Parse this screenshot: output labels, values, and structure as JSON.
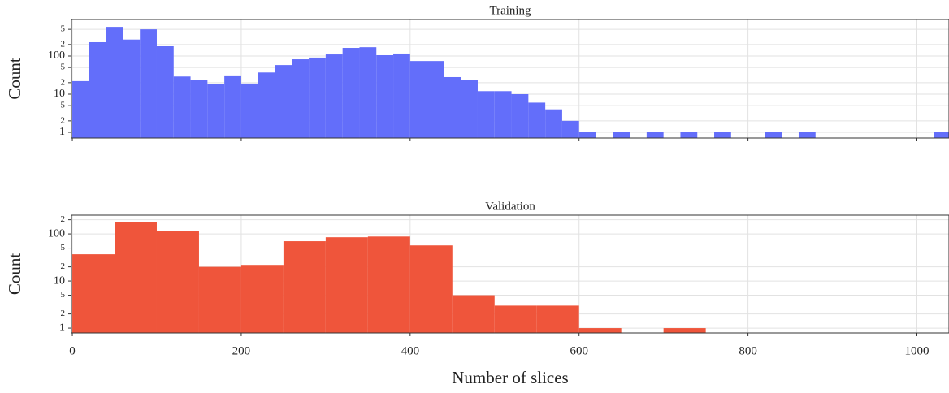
{
  "chart_data": [
    {
      "type": "histogram",
      "title": "Training",
      "ylabel": "Count",
      "color": "#636efa",
      "log_y": true,
      "grid": true,
      "bins": [
        0,
        20,
        40,
        60,
        80,
        100,
        120,
        140,
        160,
        180,
        200,
        220,
        240,
        260,
        280,
        300,
        320,
        340,
        360,
        380,
        400,
        420,
        440,
        460,
        480,
        500,
        520,
        540,
        560,
        580,
        600,
        620,
        640,
        660,
        680,
        700,
        720,
        740,
        760,
        780,
        800,
        820,
        840,
        860,
        880,
        900,
        920,
        940,
        960,
        980,
        1000,
        1020,
        1040
      ],
      "values": [
        22,
        230,
        580,
        270,
        500,
        180,
        29,
        23,
        18,
        31,
        19,
        37,
        58,
        82,
        91,
        110,
        163,
        170,
        105,
        116,
        74,
        74,
        28,
        23,
        12,
        12,
        10,
        6,
        4,
        2,
        1,
        0,
        1,
        0,
        1,
        0,
        1,
        0,
        1,
        0,
        0,
        1,
        0,
        1,
        0,
        0,
        0,
        0,
        0,
        0,
        0,
        1
      ],
      "xlim": [
        -1,
        1038
      ],
      "xticks": [
        0,
        200,
        400,
        600,
        800,
        1000
      ],
      "ylim": [
        0.71,
        906
      ],
      "yticks": [
        1,
        2,
        5,
        10,
        {
          "value": 20,
          "label": "2"
        },
        {
          "value": 50,
          "label": "5"
        },
        100,
        {
          "value": 200,
          "label": "2"
        },
        {
          "value": 500,
          "label": "5"
        }
      ]
    },
    {
      "type": "histogram",
      "title": "Validation",
      "ylabel": "Count",
      "xlabel": "Number of slices",
      "color": "#ef553b",
      "log_y": true,
      "grid": true,
      "bins": [
        0,
        50,
        100,
        150,
        200,
        250,
        300,
        350,
        400,
        450,
        500,
        550,
        600,
        650,
        700,
        750,
        800,
        850,
        900,
        950,
        1000,
        1050
      ],
      "values": [
        37,
        180,
        117,
        20,
        22,
        70,
        85,
        88,
        57,
        5,
        3,
        3,
        1,
        0,
        1,
        0,
        0,
        0,
        0,
        0,
        0
      ],
      "xlim": [
        -1,
        1038
      ],
      "xticks": [
        0,
        200,
        400,
        600,
        800,
        1000
      ],
      "ylim": [
        0.79,
        250
      ],
      "yticks": [
        1,
        2,
        5,
        10,
        {
          "value": 20,
          "label": "2"
        },
        {
          "value": 50,
          "label": "5"
        },
        100,
        {
          "value": 200,
          "label": "2"
        }
      ]
    }
  ]
}
